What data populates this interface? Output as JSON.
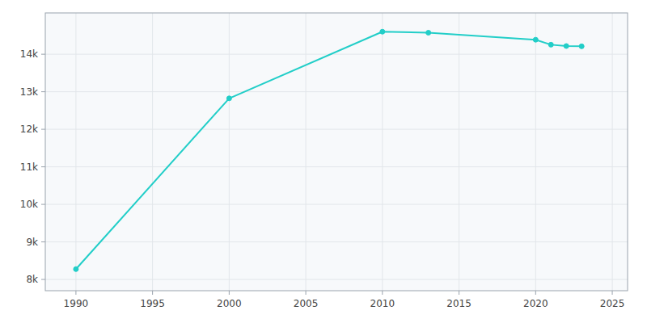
{
  "chart_data": {
    "type": "line",
    "x": [
      1990,
      2000,
      2010,
      2013,
      2020,
      2021,
      2022,
      2023
    ],
    "values": [
      8275,
      12824,
      14600,
      14573,
      14386,
      14253,
      14218,
      14210
    ],
    "color": "#22CEC8",
    "marker": "circle",
    "xlim": [
      1988,
      2026
    ],
    "ylim": [
      7700,
      15100
    ],
    "xticks": [
      1990,
      1995,
      2000,
      2005,
      2010,
      2015,
      2020,
      2025
    ],
    "yticks": [
      {
        "value": 8000,
        "label": "8k"
      },
      {
        "value": 9000,
        "label": "9k"
      },
      {
        "value": 10000,
        "label": "10k"
      },
      {
        "value": 11000,
        "label": "11k"
      },
      {
        "value": 12000,
        "label": "12k"
      },
      {
        "value": 13000,
        "label": "13k"
      },
      {
        "value": 14000,
        "label": "14k"
      }
    ],
    "grid": true
  }
}
